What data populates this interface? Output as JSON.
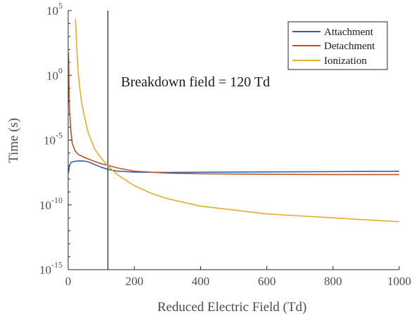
{
  "chart_data": {
    "type": "line",
    "title": "",
    "xlabel": "Reduced Electric Field (Td)",
    "ylabel": "Time (s)",
    "xlim": [
      0,
      1000
    ],
    "ylim": [
      1e-15,
      100000.0
    ],
    "yscale": "log",
    "grid": false,
    "legend_position": "top-right",
    "x_ticks": [
      {
        "value": 0,
        "label": "0"
      },
      {
        "value": 200,
        "label": "200"
      },
      {
        "value": 400,
        "label": "400"
      },
      {
        "value": 600,
        "label": "600"
      },
      {
        "value": 800,
        "label": "800"
      },
      {
        "value": 1000,
        "label": "1000"
      }
    ],
    "y_ticks": [
      {
        "value": 1e-15,
        "base": "10",
        "exp": "-15"
      },
      {
        "value": 1e-10,
        "base": "10",
        "exp": "-10"
      },
      {
        "value": 1e-05,
        "base": "10",
        "exp": "-5"
      },
      {
        "value": 1,
        "base": "10",
        "exp": "0"
      },
      {
        "value": 100000.0,
        "base": "10",
        "exp": "5"
      }
    ],
    "series": [
      {
        "name": "Attachment",
        "color": "#2e63a6",
        "points": [
          [
            1,
            3e-08
          ],
          [
            4,
            1.2e-07
          ],
          [
            10,
            2e-07
          ],
          [
            20,
            2.3e-07
          ],
          [
            35,
            2.5e-07
          ],
          [
            50,
            2.4e-07
          ],
          [
            65,
            1.9e-07
          ],
          [
            80,
            1.3e-07
          ],
          [
            100,
            8e-08
          ],
          [
            120,
            5.5e-08
          ],
          [
            150,
            4e-08
          ],
          [
            200,
            3.4e-08
          ],
          [
            300,
            3.2e-08
          ],
          [
            400,
            3.3e-08
          ],
          [
            600,
            3.5e-08
          ],
          [
            800,
            3.7e-08
          ],
          [
            1000,
            3.9e-08
          ]
        ]
      },
      {
        "name": "Detachment",
        "color": "#c0531f",
        "points": [
          [
            1,
            50.0
          ],
          [
            3,
            0.01
          ],
          [
            5,
            0.001
          ],
          [
            8,
            6e-05
          ],
          [
            12,
            6e-06
          ],
          [
            20,
            1.6e-06
          ],
          [
            30,
            8e-07
          ],
          [
            50,
            4.5e-07
          ],
          [
            70,
            2.8e-07
          ],
          [
            100,
            1.5e-07
          ],
          [
            150,
            7e-08
          ],
          [
            200,
            4e-08
          ],
          [
            300,
            2.8e-08
          ],
          [
            400,
            2.5e-08
          ],
          [
            600,
            2.3e-08
          ],
          [
            800,
            2.2e-08
          ],
          [
            1000,
            2.2e-08
          ]
        ]
      },
      {
        "name": "Ionization",
        "color": "#e4ad2d",
        "points": [
          [
            22,
            20000.0
          ],
          [
            26,
            100.0
          ],
          [
            30,
            2.0
          ],
          [
            35,
            0.1
          ],
          [
            40,
            0.01
          ],
          [
            50,
            0.0005
          ],
          [
            60,
            4e-05
          ],
          [
            80,
            2e-06
          ],
          [
            100,
            4e-07
          ],
          [
            120,
            1e-07
          ],
          [
            150,
            2e-08
          ],
          [
            200,
            3e-09
          ],
          [
            250,
            8e-10
          ],
          [
            300,
            3e-10
          ],
          [
            400,
            8e-11
          ],
          [
            500,
            4e-11
          ],
          [
            600,
            2e-11
          ],
          [
            700,
            1.4e-11
          ],
          [
            800,
            1e-11
          ],
          [
            900,
            7e-12
          ],
          [
            1000,
            5e-12
          ]
        ]
      }
    ],
    "annotations": [
      {
        "type": "vline",
        "x": 120,
        "color": "#000000"
      },
      {
        "type": "text",
        "text": "Breakdown field = 120 Td"
      }
    ]
  }
}
